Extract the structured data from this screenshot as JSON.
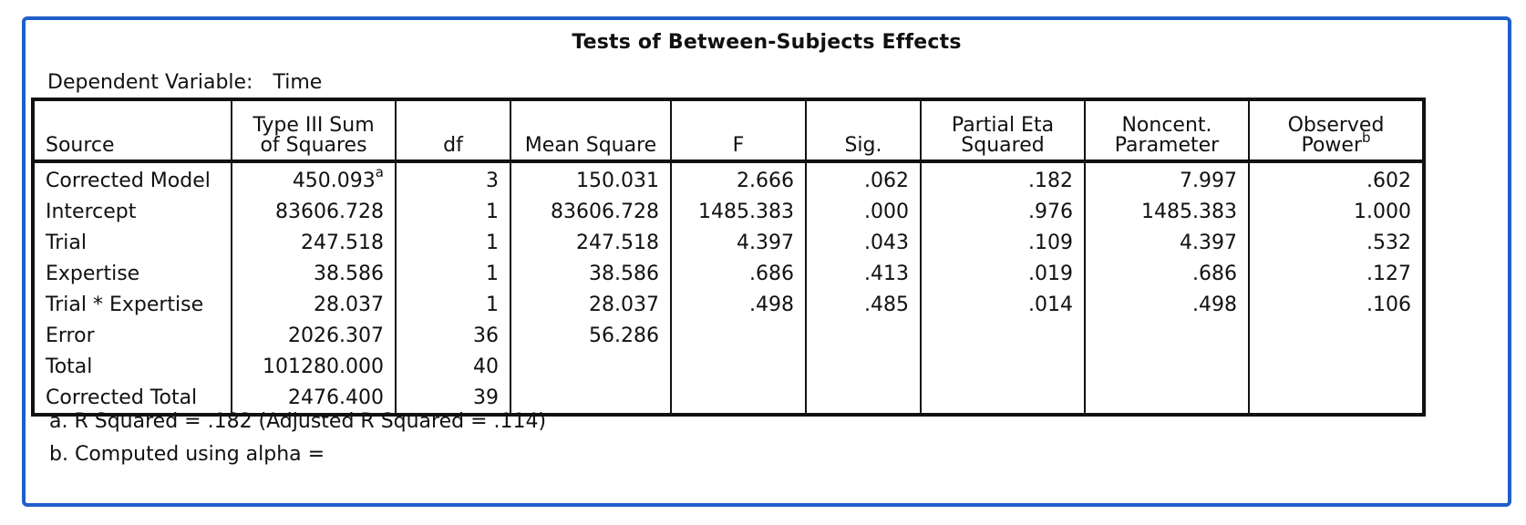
{
  "title": "Tests of Between-Subjects Effects",
  "dependent_label": "Dependent Variable:",
  "dependent_value": "Time",
  "headers": {
    "source": "Source",
    "ss_line1": "Type III Sum",
    "ss_line2": "of Squares",
    "df": "df",
    "ms": "Mean Square",
    "f": "F",
    "sig": "Sig.",
    "eta_line1": "Partial Eta",
    "eta_line2": "Squared",
    "nc_line1": "Noncent.",
    "nc_line2": "Parameter",
    "pw_line1": "Observed",
    "pw_line2": "Power",
    "pw_mark": "b"
  },
  "rows": [
    {
      "source": "Corrected Model",
      "ss": "450.093",
      "ss_mark": "a",
      "df": "3",
      "ms": "150.031",
      "f": "2.666",
      "sig": ".062",
      "eta": ".182",
      "nc": "7.997",
      "power": ".602"
    },
    {
      "source": "Intercept",
      "ss": "83606.728",
      "df": "1",
      "ms": "83606.728",
      "f": "1485.383",
      "sig": ".000",
      "eta": ".976",
      "nc": "1485.383",
      "power": "1.000"
    },
    {
      "source": "Trial",
      "ss": "247.518",
      "df": "1",
      "ms": "247.518",
      "f": "4.397",
      "sig": ".043",
      "eta": ".109",
      "nc": "4.397",
      "power": ".532"
    },
    {
      "source": "Expertise",
      "ss": "38.586",
      "df": "1",
      "ms": "38.586",
      "f": ".686",
      "sig": ".413",
      "eta": ".019",
      "nc": ".686",
      "power": ".127"
    },
    {
      "source": "Trial * Expertise",
      "ss": "28.037",
      "df": "1",
      "ms": "28.037",
      "f": ".498",
      "sig": ".485",
      "eta": ".014",
      "nc": ".498",
      "power": ".106"
    },
    {
      "source": "Error",
      "ss": "2026.307",
      "df": "36",
      "ms": "56.286",
      "f": "",
      "sig": "",
      "eta": "",
      "nc": "",
      "power": ""
    },
    {
      "source": "Total",
      "ss": "101280.000",
      "df": "40",
      "ms": "",
      "f": "",
      "sig": "",
      "eta": "",
      "nc": "",
      "power": ""
    },
    {
      "source": "Corrected Total",
      "ss": "2476.400",
      "df": "39",
      "ms": "",
      "f": "",
      "sig": "",
      "eta": "",
      "nc": "",
      "power": ""
    }
  ],
  "footnotes": {
    "a": "a. R Squared = .182 (Adjusted R Squared = .114)",
    "b": "b. Computed using alpha ="
  },
  "colors": {
    "frame_border": "#1f5fc8",
    "grid": "#111111"
  }
}
